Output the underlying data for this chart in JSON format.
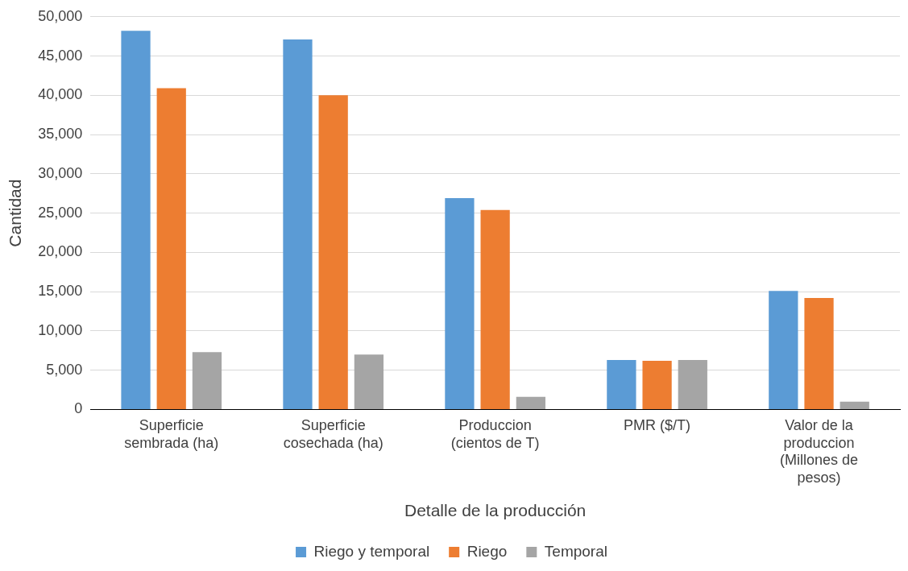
{
  "chart_data": {
    "type": "bar",
    "xlabel": "Detalle de la producción",
    "ylabel": "Cantidad",
    "categories": [
      "Superficie sembrada (ha)",
      "Superficie cosechada (ha)",
      "Produccion (cientos de T)",
      "PMR ($/T)",
      "Valor de la produccion (Millones de pesos)"
    ],
    "series": [
      {
        "name": "Riego y temporal",
        "color": "#5b9bd5",
        "values": [
          48200,
          47100,
          26900,
          6300,
          15100
        ]
      },
      {
        "name": "Riego",
        "color": "#ed7d31",
        "values": [
          40900,
          40000,
          25400,
          6200,
          14200
        ]
      },
      {
        "name": "Temporal",
        "color": "#a5a5a5",
        "values": [
          7300,
          7000,
          1600,
          6300,
          1000
        ]
      }
    ],
    "ylim": [
      0,
      50000
    ],
    "yticks": [
      0,
      {
        "value": 5000,
        "label": "5,000"
      },
      {
        "value": 10000,
        "label": "10,000"
      },
      {
        "value": 15000,
        "label": "15,000"
      },
      {
        "value": 20000,
        "label": "20,000"
      },
      {
        "value": 25000,
        "label": "25,000"
      },
      {
        "value": 30000,
        "label": "30,000"
      },
      {
        "value": 35000,
        "label": "35,000"
      },
      {
        "value": 40000,
        "label": "40,000"
      },
      {
        "value": 45000,
        "label": "45,000"
      },
      {
        "value": 50000,
        "label": "50,000"
      }
    ],
    "grid": "y",
    "legend": "bottom"
  }
}
